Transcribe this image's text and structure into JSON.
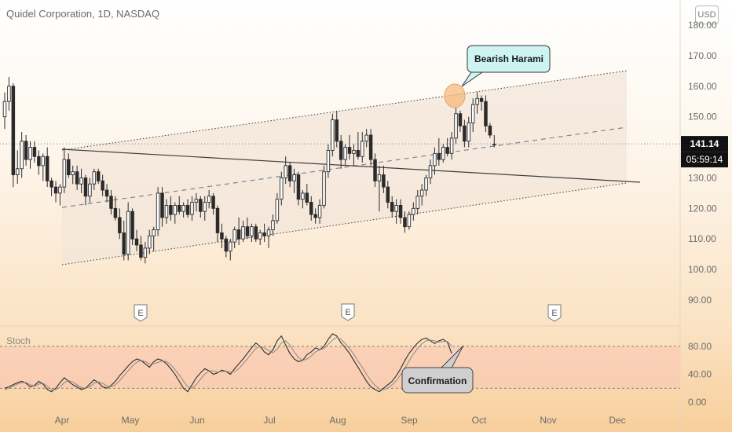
{
  "header": {
    "title": "Quidel Corporation, 1D, NASDAQ",
    "currency_button": "USD"
  },
  "price_badge": {
    "price": "141.14",
    "countdown": "05:59:14"
  },
  "earnings_markers": [
    "E",
    "E",
    "E"
  ],
  "colors": {
    "candle_body": "#2b2b2b",
    "channel_fill": "#f3e6da",
    "stoch_band": "#f9c4b5",
    "callout_fill": "#cdf3f3",
    "highlight": "#f5b877"
  },
  "chart_data": [
    {
      "type": "candlestick",
      "title": "Quidel Corporation, 1D, NASDAQ",
      "ylim": [
        84,
        181
      ],
      "y_ticks": [
        "180.00",
        "170.00",
        "160.00",
        "150.00",
        "140.00",
        "130.00",
        "120.00",
        "110.00",
        "100.00",
        "90.00"
      ],
      "x_ticks": [
        "Apr",
        "May",
        "Jun",
        "Jul",
        "Aug",
        "Sep",
        "Oct",
        "Nov",
        "Dec"
      ],
      "last_price": 141.14,
      "ohlc": [
        [
          150,
          158,
          146,
          155
        ],
        [
          155,
          163,
          152,
          160
        ],
        [
          160,
          161,
          127,
          131
        ],
        [
          131,
          139,
          128,
          133
        ],
        [
          133,
          145,
          130,
          142
        ],
        [
          142,
          144,
          134,
          136
        ],
        [
          136,
          142,
          133,
          140
        ],
        [
          140,
          142,
          135,
          137
        ],
        [
          137,
          139,
          131,
          134
        ],
        [
          134,
          138,
          129,
          137
        ],
        [
          137,
          140,
          127,
          129
        ],
        [
          129,
          130,
          124,
          127
        ],
        [
          127,
          129,
          122,
          125
        ],
        [
          125,
          128,
          121,
          127
        ],
        [
          127,
          140,
          125,
          136
        ],
        [
          136,
          138,
          130,
          131
        ],
        [
          131,
          134,
          128,
          132
        ],
        [
          132,
          134,
          126,
          128
        ],
        [
          128,
          133,
          125,
          130
        ],
        [
          130,
          131,
          121,
          124
        ],
        [
          124,
          130,
          122,
          128
        ],
        [
          128,
          133,
          126,
          132
        ],
        [
          132,
          133,
          128,
          129
        ],
        [
          129,
          131,
          124,
          126
        ],
        [
          126,
          128,
          122,
          124
        ],
        [
          124,
          126,
          118,
          120
        ],
        [
          120,
          124,
          116,
          117
        ],
        [
          117,
          120,
          110,
          112
        ],
        [
          112,
          116,
          103,
          105
        ],
        [
          105,
          122,
          103,
          119
        ],
        [
          119,
          120,
          108,
          110
        ],
        [
          110,
          113,
          106,
          108
        ],
        [
          108,
          111,
          103,
          104
        ],
        [
          104,
          109,
          102,
          107
        ],
        [
          107,
          113,
          105,
          111
        ],
        [
          111,
          114,
          106,
          113
        ],
        [
          113,
          127,
          111,
          125
        ],
        [
          125,
          127,
          114,
          117
        ],
        [
          117,
          123,
          115,
          121
        ],
        [
          121,
          124,
          116,
          118
        ],
        [
          118,
          122,
          115,
          121
        ],
        [
          121,
          124,
          118,
          119
        ],
        [
          119,
          122,
          117,
          121
        ],
        [
          121,
          123,
          117,
          118
        ],
        [
          118,
          124,
          116,
          122
        ],
        [
          122,
          125,
          119,
          123
        ],
        [
          123,
          124,
          117,
          119
        ],
        [
          119,
          124,
          116,
          122
        ],
        [
          122,
          126,
          120,
          124
        ],
        [
          124,
          125,
          118,
          120
        ],
        [
          120,
          121,
          109,
          112
        ],
        [
          112,
          115,
          107,
          110
        ],
        [
          110,
          111,
          104,
          106
        ],
        [
          106,
          110,
          103,
          109
        ],
        [
          109,
          114,
          107,
          113
        ],
        [
          113,
          117,
          108,
          110
        ],
        [
          110,
          116,
          109,
          114
        ],
        [
          114,
          117,
          110,
          111
        ],
        [
          111,
          115,
          109,
          114
        ],
        [
          114,
          115,
          109,
          110
        ],
        [
          110,
          113,
          108,
          112
        ],
        [
          112,
          115,
          109,
          111
        ],
        [
          111,
          114,
          107,
          113
        ],
        [
          113,
          118,
          111,
          116
        ],
        [
          116,
          125,
          115,
          123
        ],
        [
          123,
          132,
          121,
          130
        ],
        [
          130,
          137,
          128,
          134
        ],
        [
          134,
          135,
          127,
          129
        ],
        [
          129,
          133,
          125,
          131
        ],
        [
          131,
          132,
          121,
          123
        ],
        [
          123,
          126,
          120,
          125
        ],
        [
          125,
          128,
          121,
          122
        ],
        [
          122,
          124,
          116,
          118
        ],
        [
          118,
          120,
          115,
          117
        ],
        [
          117,
          123,
          115,
          121
        ],
        [
          121,
          134,
          120,
          132
        ],
        [
          132,
          141,
          130,
          139
        ],
        [
          139,
          151,
          137,
          149
        ],
        [
          149,
          152,
          140,
          142
        ],
        [
          142,
          144,
          133,
          136
        ],
        [
          136,
          141,
          134,
          140
        ],
        [
          140,
          144,
          136,
          138
        ],
        [
          138,
          141,
          134,
          139
        ],
        [
          139,
          145,
          136,
          137
        ],
        [
          137,
          145,
          135,
          142
        ],
        [
          142,
          146,
          140,
          144
        ],
        [
          144,
          146,
          134,
          136
        ],
        [
          136,
          138,
          127,
          129
        ],
        [
          129,
          134,
          119,
          131
        ],
        [
          131,
          134,
          125,
          127
        ],
        [
          127,
          129,
          120,
          122
        ],
        [
          122,
          124,
          117,
          119
        ],
        [
          119,
          123,
          115,
          121
        ],
        [
          121,
          123,
          115,
          117
        ],
        [
          117,
          119,
          112,
          114
        ],
        [
          114,
          119,
          113,
          118
        ],
        [
          118,
          122,
          116,
          120
        ],
        [
          120,
          126,
          118,
          124
        ],
        [
          124,
          128,
          121,
          126
        ],
        [
          126,
          131,
          124,
          130
        ],
        [
          130,
          136,
          128,
          134
        ],
        [
          134,
          140,
          131,
          138
        ],
        [
          138,
          143,
          134,
          136
        ],
        [
          136,
          141,
          135,
          140
        ],
        [
          140,
          143,
          137,
          138
        ],
        [
          138,
          145,
          136,
          143
        ],
        [
          143,
          153,
          141,
          151
        ],
        [
          151,
          152,
          145,
          147
        ],
        [
          147,
          149,
          140,
          142
        ],
        [
          142,
          150,
          140,
          148
        ],
        [
          148,
          156,
          145,
          154
        ],
        [
          154,
          158,
          151,
          156
        ],
        [
          156,
          157,
          152,
          155
        ],
        [
          155,
          157,
          145,
          147
        ],
        [
          147,
          148,
          143,
          144
        ],
        [
          141,
          144,
          140,
          141
        ]
      ],
      "annotations": [
        "Bearish Harami"
      ]
    },
    {
      "type": "line",
      "title": "Stoch",
      "ylim": [
        -5,
        102
      ],
      "y_ticks": [
        "80.00",
        "40.00",
        "0.00"
      ],
      "band": [
        20,
        80
      ],
      "series": [
        {
          "values": [
            20,
            22,
            25,
            28,
            30,
            27,
            22,
            24,
            30,
            26,
            18,
            15,
            20,
            28,
            35,
            30,
            25,
            22,
            18,
            20,
            26,
            32,
            28,
            22,
            20,
            24,
            30,
            38,
            45,
            52,
            58,
            62,
            60,
            55,
            50,
            58,
            62,
            60,
            55,
            48,
            40,
            30,
            20,
            15,
            25,
            35,
            42,
            48,
            45,
            40,
            42,
            46,
            44,
            40,
            48,
            55,
            62,
            70,
            78,
            85,
            80,
            72,
            68,
            75,
            88,
            95,
            82,
            70,
            62,
            58,
            60,
            68,
            72,
            78,
            75,
            80,
            90,
            98,
            95,
            85,
            78,
            70,
            60,
            50,
            40,
            30,
            22,
            18,
            15,
            20,
            25,
            30,
            38,
            48,
            60,
            70,
            78,
            85,
            90,
            92,
            88,
            84,
            88,
            90,
            86,
            70
          ]
        },
        {
          "values": [
            18,
            20,
            23,
            26,
            28,
            28,
            25,
            23,
            26,
            27,
            23,
            18,
            18,
            22,
            28,
            31,
            29,
            25,
            21,
            20,
            22,
            27,
            29,
            27,
            23,
            22,
            25,
            31,
            38,
            45,
            52,
            57,
            60,
            58,
            55,
            55,
            57,
            59,
            58,
            54,
            47,
            39,
            30,
            22,
            20,
            25,
            33,
            40,
            45,
            45,
            43,
            44,
            44,
            43,
            44,
            48,
            55,
            62,
            70,
            77,
            80,
            78,
            74,
            71,
            76,
            85,
            88,
            82,
            72,
            64,
            60,
            62,
            66,
            72,
            75,
            77,
            83,
            89,
            93,
            90,
            84,
            77,
            69,
            59,
            50,
            40,
            31,
            24,
            19,
            18,
            20,
            25,
            31,
            39,
            49,
            59,
            69,
            77,
            84,
            88,
            89,
            88,
            86,
            87,
            87,
            80
          ]
        }
      ],
      "annotations": [
        "Confirmation"
      ]
    }
  ]
}
